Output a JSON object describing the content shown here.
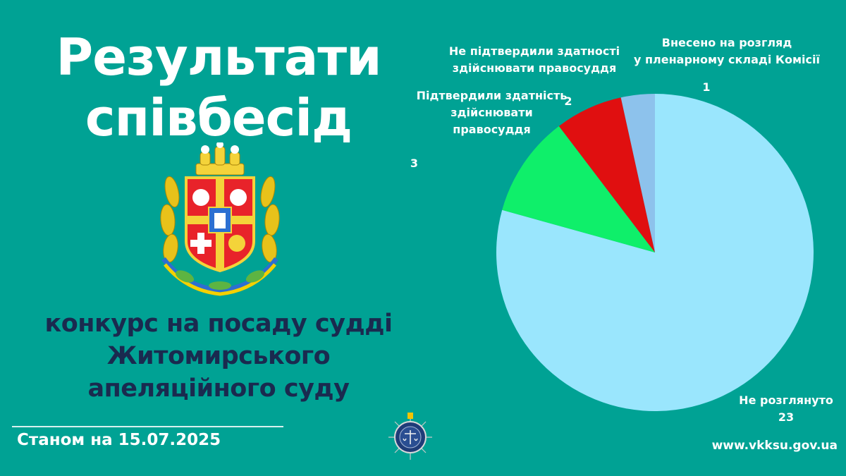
{
  "header": {
    "title_line1": "Результати",
    "title_line2": "співбесід"
  },
  "subtitle": {
    "line1": "конкурс на посаду судді",
    "line2": "Житомирського",
    "line3": "апеляційного суду"
  },
  "footer": {
    "date": "Станом на 15.07.2025",
    "url": "www.vkksu.gov.ua"
  },
  "colors": {
    "background": "#00a294",
    "title": "#ffffff",
    "subtitle": "#1a2a4f"
  },
  "icons": {
    "emblem": "zhytomyr-oblast-coat-of-arms-icon",
    "seal": "hqcj-seal-icon"
  },
  "chart_data": {
    "type": "pie",
    "start_angle_deg": 0,
    "direction": "clockwise",
    "slices": [
      {
        "category_lines": [
          "Не розглянуто"
        ],
        "value": 23,
        "color": "#9ae6fd"
      },
      {
        "category_lines": [
          "Підтвердили здатність",
          "здійснювати",
          "правосуддя"
        ],
        "value": 3,
        "color": "#0fef6a"
      },
      {
        "category_lines": [
          "Не підтвердили здатності",
          "здійснювати правосуддя"
        ],
        "value": 2,
        "color": "#e00f10"
      },
      {
        "category_lines": [
          "Внесено на розгляд",
          "у пленарному складі Комісії"
        ],
        "value": 1,
        "color": "#8dc2ec"
      }
    ]
  }
}
